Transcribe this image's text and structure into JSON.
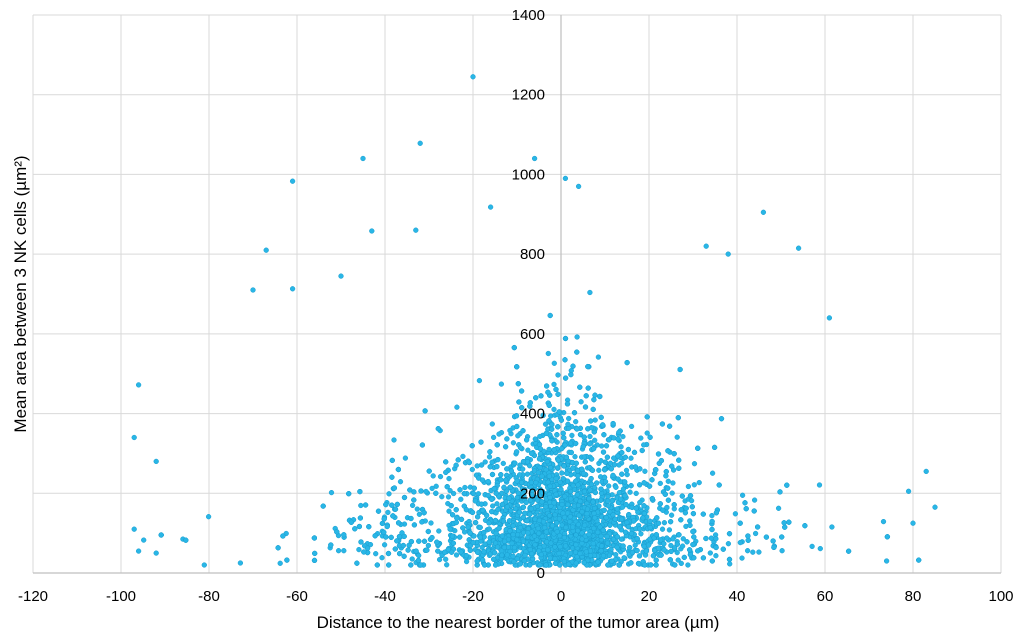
{
  "chart_data": {
    "type": "scatter",
    "title": "",
    "xlabel": "Distance to the nearest border of the tumor area (µm)",
    "ylabel": "Mean area between 3 NK cells (µm²)",
    "xlim": [
      -120,
      100
    ],
    "ylim": [
      0,
      1400
    ],
    "x_ticks": [
      -120,
      -100,
      -80,
      -60,
      -40,
      -20,
      0,
      20,
      40,
      60,
      80,
      100
    ],
    "y_ticks": [
      0,
      200,
      400,
      600,
      800,
      1000,
      1200,
      1400
    ],
    "grid": true,
    "legend": "none",
    "marker_color": "#29b6e6",
    "marker_edge_color": "#1a9fd1",
    "point_count_approx": 4000,
    "highlighted_points": [
      {
        "x": -20,
        "y": 1245
      },
      {
        "x": -32,
        "y": 1078
      },
      {
        "x": -45,
        "y": 1040
      },
      {
        "x": -6,
        "y": 1040
      },
      {
        "x": 1,
        "y": 990
      },
      {
        "x": -61,
        "y": 983
      },
      {
        "x": 4,
        "y": 970
      },
      {
        "x": 46,
        "y": 905
      },
      {
        "x": -16,
        "y": 918
      },
      {
        "x": -67,
        "y": 810
      },
      {
        "x": 33,
        "y": 820
      },
      {
        "x": 54,
        "y": 815
      },
      {
        "x": -33,
        "y": 860
      },
      {
        "x": -43,
        "y": 858
      },
      {
        "x": 38,
        "y": 800
      },
      {
        "x": -70,
        "y": 710
      },
      {
        "x": -61,
        "y": 713
      },
      {
        "x": -50,
        "y": 745
      },
      {
        "x": 61,
        "y": 640
      },
      {
        "x": -96,
        "y": 472
      },
      {
        "x": -97,
        "y": 340
      },
      {
        "x": -92,
        "y": 280
      },
      {
        "x": -97,
        "y": 110
      },
      {
        "x": -96,
        "y": 55
      },
      {
        "x": -92,
        "y": 50
      },
      {
        "x": 85,
        "y": 165
      },
      {
        "x": 83,
        "y": 255
      },
      {
        "x": 79,
        "y": 205
      },
      {
        "x": 80,
        "y": 125
      },
      {
        "x": 74,
        "y": 30
      }
    ],
    "description_density": "Dense cloud of several thousand points concentrated near x=0 and y=0–300, thinning outward toward x=-100 and x=85 and upward toward y=1245"
  }
}
